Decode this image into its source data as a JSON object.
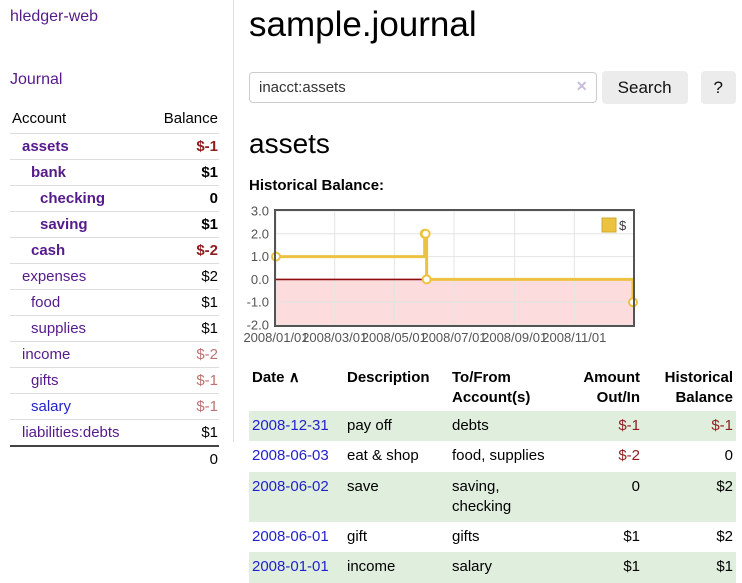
{
  "sidebar": {
    "brand": "hledger-web",
    "journal_label": "Journal",
    "table": {
      "account_header": "Account",
      "balance_header": "Balance"
    },
    "accounts": [
      {
        "name": "assets",
        "balance": "$-1",
        "indent": 0,
        "bold": true,
        "balance_style": "neg",
        "name_style": "purple"
      },
      {
        "name": "bank",
        "balance": "$1",
        "indent": 1,
        "bold": true,
        "balance_style": "pos",
        "name_style": "purple"
      },
      {
        "name": "checking",
        "balance": "0",
        "indent": 2,
        "bold": true,
        "balance_style": "pos",
        "name_style": "purple"
      },
      {
        "name": "saving",
        "balance": "$1",
        "indent": 2,
        "bold": true,
        "balance_style": "pos",
        "name_style": "purple"
      },
      {
        "name": "cash",
        "balance": "$-2",
        "indent": 1,
        "bold": true,
        "balance_style": "neg",
        "name_style": "purple"
      },
      {
        "name": "expenses",
        "balance": "$2",
        "indent": 0,
        "bold": false,
        "balance_style": "pos",
        "name_style": "purple"
      },
      {
        "name": "food",
        "balance": "$1",
        "indent": 1,
        "bold": false,
        "balance_style": "pos",
        "name_style": "purple"
      },
      {
        "name": "supplies",
        "balance": "$1",
        "indent": 1,
        "bold": false,
        "balance_style": "pos",
        "name_style": "purple"
      },
      {
        "name": "income",
        "balance": "$-2",
        "indent": 0,
        "bold": false,
        "balance_style": "negf",
        "name_style": "purple"
      },
      {
        "name": "gifts",
        "balance": "$-1",
        "indent": 1,
        "bold": false,
        "balance_style": "negf",
        "name_style": "purple"
      },
      {
        "name": "salary",
        "balance": "$-1",
        "indent": 1,
        "bold": false,
        "balance_style": "negf",
        "name_style": "blue"
      },
      {
        "name": "liabilities:debts",
        "balance": "$1",
        "indent": 0,
        "bold": false,
        "balance_style": "pos",
        "name_style": "purple"
      }
    ],
    "total": "0"
  },
  "header": {
    "title": "sample.journal"
  },
  "search": {
    "value": "inacct:assets",
    "placeholder": "",
    "clear_icon": "✕",
    "button_label": "Search",
    "help_label": "?"
  },
  "account_page": {
    "heading": "assets",
    "chart_label": "Historical Balance:"
  },
  "chart_data": {
    "type": "line",
    "title": "Historical Balance:",
    "step": true,
    "grid": true,
    "legend_position": "top-right",
    "legend": [
      {
        "label": "$",
        "color": "#edc240"
      }
    ],
    "xlim": [
      "2008-01-01",
      "2008-12-31"
    ],
    "xlim_days": [
      0,
      365
    ],
    "ylim": [
      -2,
      3
    ],
    "y_ticks": [
      "3.0",
      "2.0",
      "1.0",
      "0.0",
      "-1.0",
      "-2.0"
    ],
    "y_tick_values": [
      3,
      2,
      1,
      0,
      -1,
      -2
    ],
    "x_ticks": [
      {
        "label": "2008/01/01",
        "day": 0
      },
      {
        "label": "2008/03/01",
        "day": 60
      },
      {
        "label": "2008/05/01",
        "day": 121
      },
      {
        "label": "2008/07/01",
        "day": 182
      },
      {
        "label": "2008/09/01",
        "day": 244
      },
      {
        "label": "2008/11/01",
        "day": 305
      }
    ],
    "series": [
      {
        "name": "$",
        "color": "#edc240",
        "points": [
          {
            "date": "2008-01-01",
            "day": 0,
            "value": 1
          },
          {
            "date": "2008-06-01",
            "day": 152,
            "value": 2
          },
          {
            "date": "2008-06-02",
            "day": 153,
            "value": 2
          },
          {
            "date": "2008-06-03",
            "day": 154,
            "value": 0
          },
          {
            "date": "2008-12-31",
            "day": 365,
            "value": -1
          }
        ]
      }
    ],
    "negative_region_fill": "#fcdcdc",
    "zero_line_color": "#910e10"
  },
  "register": {
    "columns": {
      "date": "Date",
      "sort_icon": "∧",
      "description": "Description",
      "accounts": "To/From Account(s)",
      "amount": "Amount Out/In",
      "balance": "Historical Balance"
    },
    "rows": [
      {
        "date": "2008-12-31",
        "description": "pay off",
        "accounts": "debts",
        "amount": "$-1",
        "balance": "$-1"
      },
      {
        "date": "2008-06-03",
        "description": "eat & shop",
        "accounts": "food, supplies",
        "amount": "$-2",
        "balance": "0"
      },
      {
        "date": "2008-06-02",
        "description": "save",
        "accounts": "saving, checking",
        "amount": "0",
        "balance": "$2"
      },
      {
        "date": "2008-06-01",
        "description": "gift",
        "accounts": "gifts",
        "amount": "$1",
        "balance": "$2"
      },
      {
        "date": "2008-01-01",
        "description": "income",
        "accounts": "salary",
        "amount": "$1",
        "balance": "$1"
      }
    ]
  },
  "colors": {
    "accent_purple": "#551a8b",
    "link_blue": "#2222cc",
    "negative_dark_red": "#8f1d1d",
    "negative_faded_red": "#bf7171",
    "row_stripe_green": "#e0eede",
    "chart_gold": "#edc240",
    "chart_negative_fill": "#fcdcdc",
    "chart_zero_line": "#910e10",
    "chart_border_gray": "#545454"
  }
}
